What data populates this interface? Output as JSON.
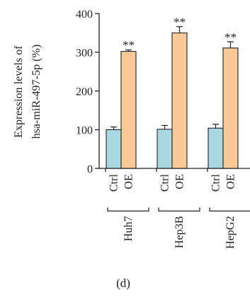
{
  "chart_data": {
    "type": "bar",
    "ylabel_lines": [
      "Expression levels of",
      "hsa-miR-497-5p (%)"
    ],
    "ylim": [
      0,
      400
    ],
    "yticks": [
      0,
      100,
      200,
      300,
      400
    ],
    "groups": [
      "Huh7",
      "Hep3B",
      "HepG2"
    ],
    "series": [
      {
        "name": "Ctrl",
        "color": "#a9d8e2",
        "values": [
          100,
          101,
          104
        ],
        "errors": [
          7,
          10,
          10
        ]
      },
      {
        "name": "OE",
        "color": "#fbc995",
        "values": [
          302,
          350,
          311
        ],
        "errors": [
          4,
          16,
          16
        ]
      }
    ],
    "significance": [
      "**",
      "**",
      "**"
    ],
    "grid": false,
    "legend": "none"
  },
  "panel_label": "(d)"
}
